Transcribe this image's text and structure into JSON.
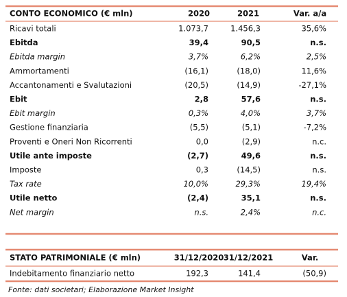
{
  "income_table": {
    "header": [
      "CONTO ECONOMICO (€ mln)",
      "2020",
      "2021",
      "Var. a/a"
    ],
    "rows": [
      [
        "Ricavi totali",
        "1.073,7",
        "1.456,3",
        "35,6%"
      ],
      [
        "Ebitda",
        "39,4",
        "90,5",
        "n.s."
      ],
      [
        "Ebitda margin",
        "3,7%",
        "6,2%",
        "2,5%"
      ],
      [
        "Ammortamenti",
        "(16,1)",
        "(18,0)",
        "11,6%"
      ],
      [
        "Accantonamenti e Svalutazioni",
        "(20,5)",
        "(14,9)",
        "-27,1%"
      ],
      [
        "Ebit",
        "2,8",
        "57,6",
        "n.s."
      ],
      [
        "Ebit margin",
        "0,3%",
        "4,0%",
        "3,7%"
      ],
      [
        "Gestione finanziaria",
        "(5,5)",
        "(5,1)",
        "-7,2%"
      ],
      [
        "Proventi e Oneri Non Ricorrenti",
        "0,0",
        "(2,9)",
        "n.c."
      ],
      [
        "Utile ante imposte",
        "(2,7)",
        "49,6",
        "n.s."
      ],
      [
        "Imposte",
        "0,3",
        "(14,5)",
        "n.s."
      ],
      [
        "Tax rate",
        "10,0%",
        "29,3%",
        "19,4%"
      ],
      [
        "Utile netto",
        "(2,4)",
        "35,1",
        "n.s."
      ],
      [
        "Net margin",
        "n.s.",
        "2,4%",
        "n.c."
      ]
    ]
  },
  "balance_table": {
    "header": [
      "STATO PATRIMONIALE (€ mln)",
      "31/12/2020",
      "31/12/2021",
      "Var."
    ],
    "rows": [
      [
        "Indebitamento finanziario netto",
        "192,3",
        "141,4",
        "(50,9)"
      ]
    ]
  },
  "footnote": "Fonte: dati societari; Elaborazione Market Insight"
}
